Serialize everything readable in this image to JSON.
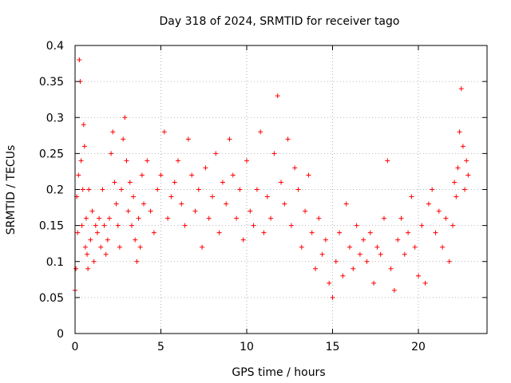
{
  "chart_data": {
    "type": "scatter",
    "title": "Day 318 of 2024, SRMTID for receiver tago",
    "xlabel": "GPS time / hours",
    "ylabel": "SRMTID / TECUs",
    "xlim": [
      0,
      24
    ],
    "ylim": [
      0,
      0.4
    ],
    "x_ticks": [
      0,
      5,
      10,
      15,
      20
    ],
    "y_ticks": [
      0,
      0.05,
      0.1,
      0.15,
      0.2,
      0.25,
      0.3,
      0.35,
      0.4
    ],
    "x_tick_labels": [
      "0",
      "5",
      "10",
      "15",
      "20"
    ],
    "y_tick_labels": [
      "0",
      "0.05",
      "0.1",
      "0.15",
      "0.2",
      "0.25",
      "0.3",
      "0.35",
      "0.4"
    ],
    "grid": true,
    "marker": "+",
    "color": "#ff0000",
    "series": [
      {
        "name": "SRMTID",
        "x": [
          0.0,
          0.05,
          0.1,
          0.15,
          0.2,
          0.25,
          0.3,
          0.35,
          0.4,
          0.45,
          0.5,
          0.55,
          0.6,
          0.65,
          0.7,
          0.75,
          0.8,
          0.9,
          1.0,
          1.1,
          1.2,
          1.3,
          1.4,
          1.5,
          1.6,
          1.7,
          1.8,
          1.9,
          2.0,
          2.1,
          2.2,
          2.3,
          2.4,
          2.5,
          2.6,
          2.7,
          2.8,
          2.9,
          3.0,
          3.1,
          3.2,
          3.3,
          3.4,
          3.5,
          3.6,
          3.7,
          3.8,
          3.9,
          4.0,
          4.2,
          4.4,
          4.6,
          4.8,
          5.0,
          5.2,
          5.4,
          5.6,
          5.8,
          6.0,
          6.2,
          6.4,
          6.6,
          6.8,
          7.0,
          7.2,
          7.4,
          7.6,
          7.8,
          8.0,
          8.2,
          8.4,
          8.6,
          8.8,
          9.0,
          9.2,
          9.4,
          9.6,
          9.8,
          10.0,
          10.2,
          10.4,
          10.6,
          10.8,
          11.0,
          11.2,
          11.4,
          11.6,
          11.8,
          12.0,
          12.2,
          12.4,
          12.6,
          12.8,
          13.0,
          13.2,
          13.4,
          13.6,
          13.8,
          14.0,
          14.2,
          14.4,
          14.6,
          14.8,
          15.0,
          15.2,
          15.4,
          15.6,
          15.8,
          16.0,
          16.2,
          16.4,
          16.6,
          16.8,
          17.0,
          17.2,
          17.4,
          17.6,
          17.8,
          18.0,
          18.2,
          18.4,
          18.6,
          18.8,
          19.0,
          19.2,
          19.4,
          19.6,
          19.8,
          20.0,
          20.2,
          20.4,
          20.6,
          20.8,
          21.0,
          21.2,
          21.4,
          21.6,
          21.8,
          22.0,
          22.1,
          22.2,
          22.3,
          22.4,
          22.5,
          22.6,
          22.7,
          22.8,
          22.9
        ],
        "y": [
          0.06,
          0.09,
          0.19,
          0.14,
          0.22,
          0.38,
          0.35,
          0.24,
          0.15,
          0.2,
          0.29,
          0.26,
          0.12,
          0.16,
          0.11,
          0.09,
          0.2,
          0.13,
          0.17,
          0.1,
          0.15,
          0.14,
          0.16,
          0.12,
          0.2,
          0.15,
          0.11,
          0.13,
          0.16,
          0.25,
          0.28,
          0.21,
          0.18,
          0.15,
          0.12,
          0.2,
          0.27,
          0.3,
          0.24,
          0.17,
          0.21,
          0.15,
          0.19,
          0.13,
          0.1,
          0.16,
          0.12,
          0.22,
          0.18,
          0.24,
          0.17,
          0.14,
          0.2,
          0.22,
          0.28,
          0.16,
          0.19,
          0.21,
          0.24,
          0.18,
          0.15,
          0.27,
          0.22,
          0.17,
          0.2,
          0.12,
          0.23,
          0.16,
          0.19,
          0.25,
          0.14,
          0.21,
          0.18,
          0.27,
          0.22,
          0.16,
          0.2,
          0.13,
          0.24,
          0.17,
          0.15,
          0.2,
          0.28,
          0.14,
          0.19,
          0.16,
          0.25,
          0.33,
          0.21,
          0.18,
          0.27,
          0.15,
          0.23,
          0.2,
          0.12,
          0.17,
          0.22,
          0.14,
          0.09,
          0.16,
          0.11,
          0.13,
          0.07,
          0.05,
          0.1,
          0.14,
          0.08,
          0.18,
          0.12,
          0.09,
          0.15,
          0.11,
          0.13,
          0.1,
          0.14,
          0.07,
          0.12,
          0.11,
          0.16,
          0.24,
          0.09,
          0.06,
          0.13,
          0.16,
          0.11,
          0.14,
          0.19,
          0.12,
          0.08,
          0.15,
          0.07,
          0.18,
          0.2,
          0.14,
          0.17,
          0.12,
          0.16,
          0.1,
          0.15,
          0.21,
          0.19,
          0.23,
          0.28,
          0.34,
          0.26,
          0.2,
          0.24,
          0.22
        ]
      }
    ]
  }
}
